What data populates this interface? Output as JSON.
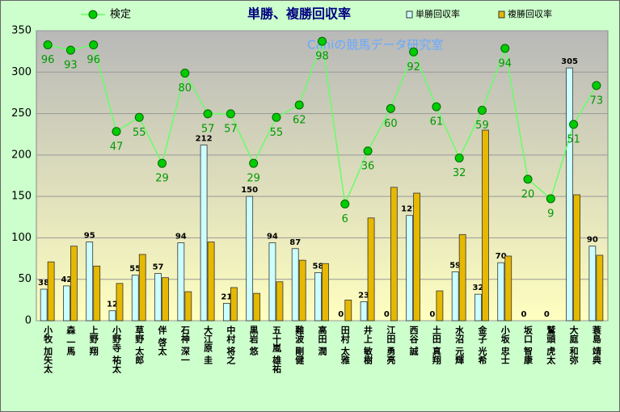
{
  "chart_data": {
    "type": "bar_line",
    "title": "単勝、複勝回収率",
    "watermark": "Caniの競馬データ研究室",
    "categories": [
      "小牧 加矢太",
      "森 一馬",
      "上野 翔",
      "小野寺 祐太",
      "草野 太郎",
      "伴 啓太",
      "石神 深一",
      "大江原 圭",
      "中村 将之",
      "黒岩 悠",
      "五十嵐 雄祐",
      "難波 剛健",
      "高田 潤",
      "田村 太雅",
      "井上 敏樹",
      "江田 勇亮",
      "西谷 誠",
      "土田 真翔",
      "水沼 元輝",
      "金子 光希",
      "小坂 忠士",
      "坂口 智康",
      "鷲頭 虎太",
      "大庭 和弥",
      "蓑島 靖典"
    ],
    "series": [
      {
        "name": "単勝回収率",
        "type": "bar",
        "color": "#ccffff",
        "values": [
          38,
          42,
          95,
          12,
          55,
          57,
          94,
          212,
          21,
          150,
          94,
          87,
          58,
          0,
          23,
          0,
          127,
          0,
          59,
          32,
          70,
          0,
          0,
          305,
          90
        ],
        "show_labels": true
      },
      {
        "name": "複勝回収率",
        "type": "bar",
        "color": "#e6b800",
        "values": [
          71,
          90,
          66,
          45,
          80,
          52,
          35,
          95,
          40,
          33,
          47,
          73,
          69,
          25,
          124,
          161,
          154,
          36,
          104,
          230,
          78,
          0,
          0,
          152,
          79
        ],
        "show_labels": false
      },
      {
        "name": "検定",
        "type": "line",
        "axis": "y2",
        "color": "#00cc00",
        "values": [
          96,
          93,
          96,
          47,
          55,
          29,
          80,
          57,
          57,
          29,
          55,
          62,
          98,
          6,
          36,
          60,
          92,
          61,
          32,
          59,
          94,
          20,
          9,
          51,
          73
        ],
        "show_labels": true
      }
    ],
    "ylim": [
      0,
      350
    ],
    "yticks": [
      0,
      50,
      100,
      150,
      200,
      250,
      300,
      350
    ],
    "y2lim": [
      -60,
      104
    ],
    "grid": true
  }
}
